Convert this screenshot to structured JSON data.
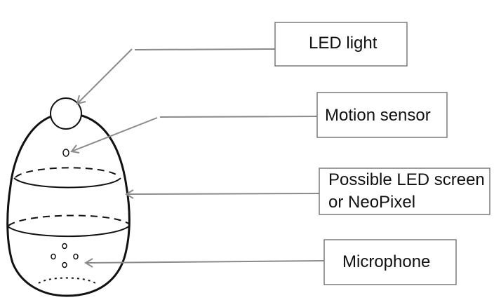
{
  "labels": {
    "led_light": "LED light",
    "motion_sensor": "Motion sensor",
    "led_screen_line1": "Possible LED screen",
    "led_screen_line2": "or NeoPixel",
    "microphone": "Microphone"
  },
  "colors": {
    "outline": "#111111",
    "leader": "#8a8a8a",
    "box_border": "#7a7a7a",
    "background": "#ffffff"
  }
}
